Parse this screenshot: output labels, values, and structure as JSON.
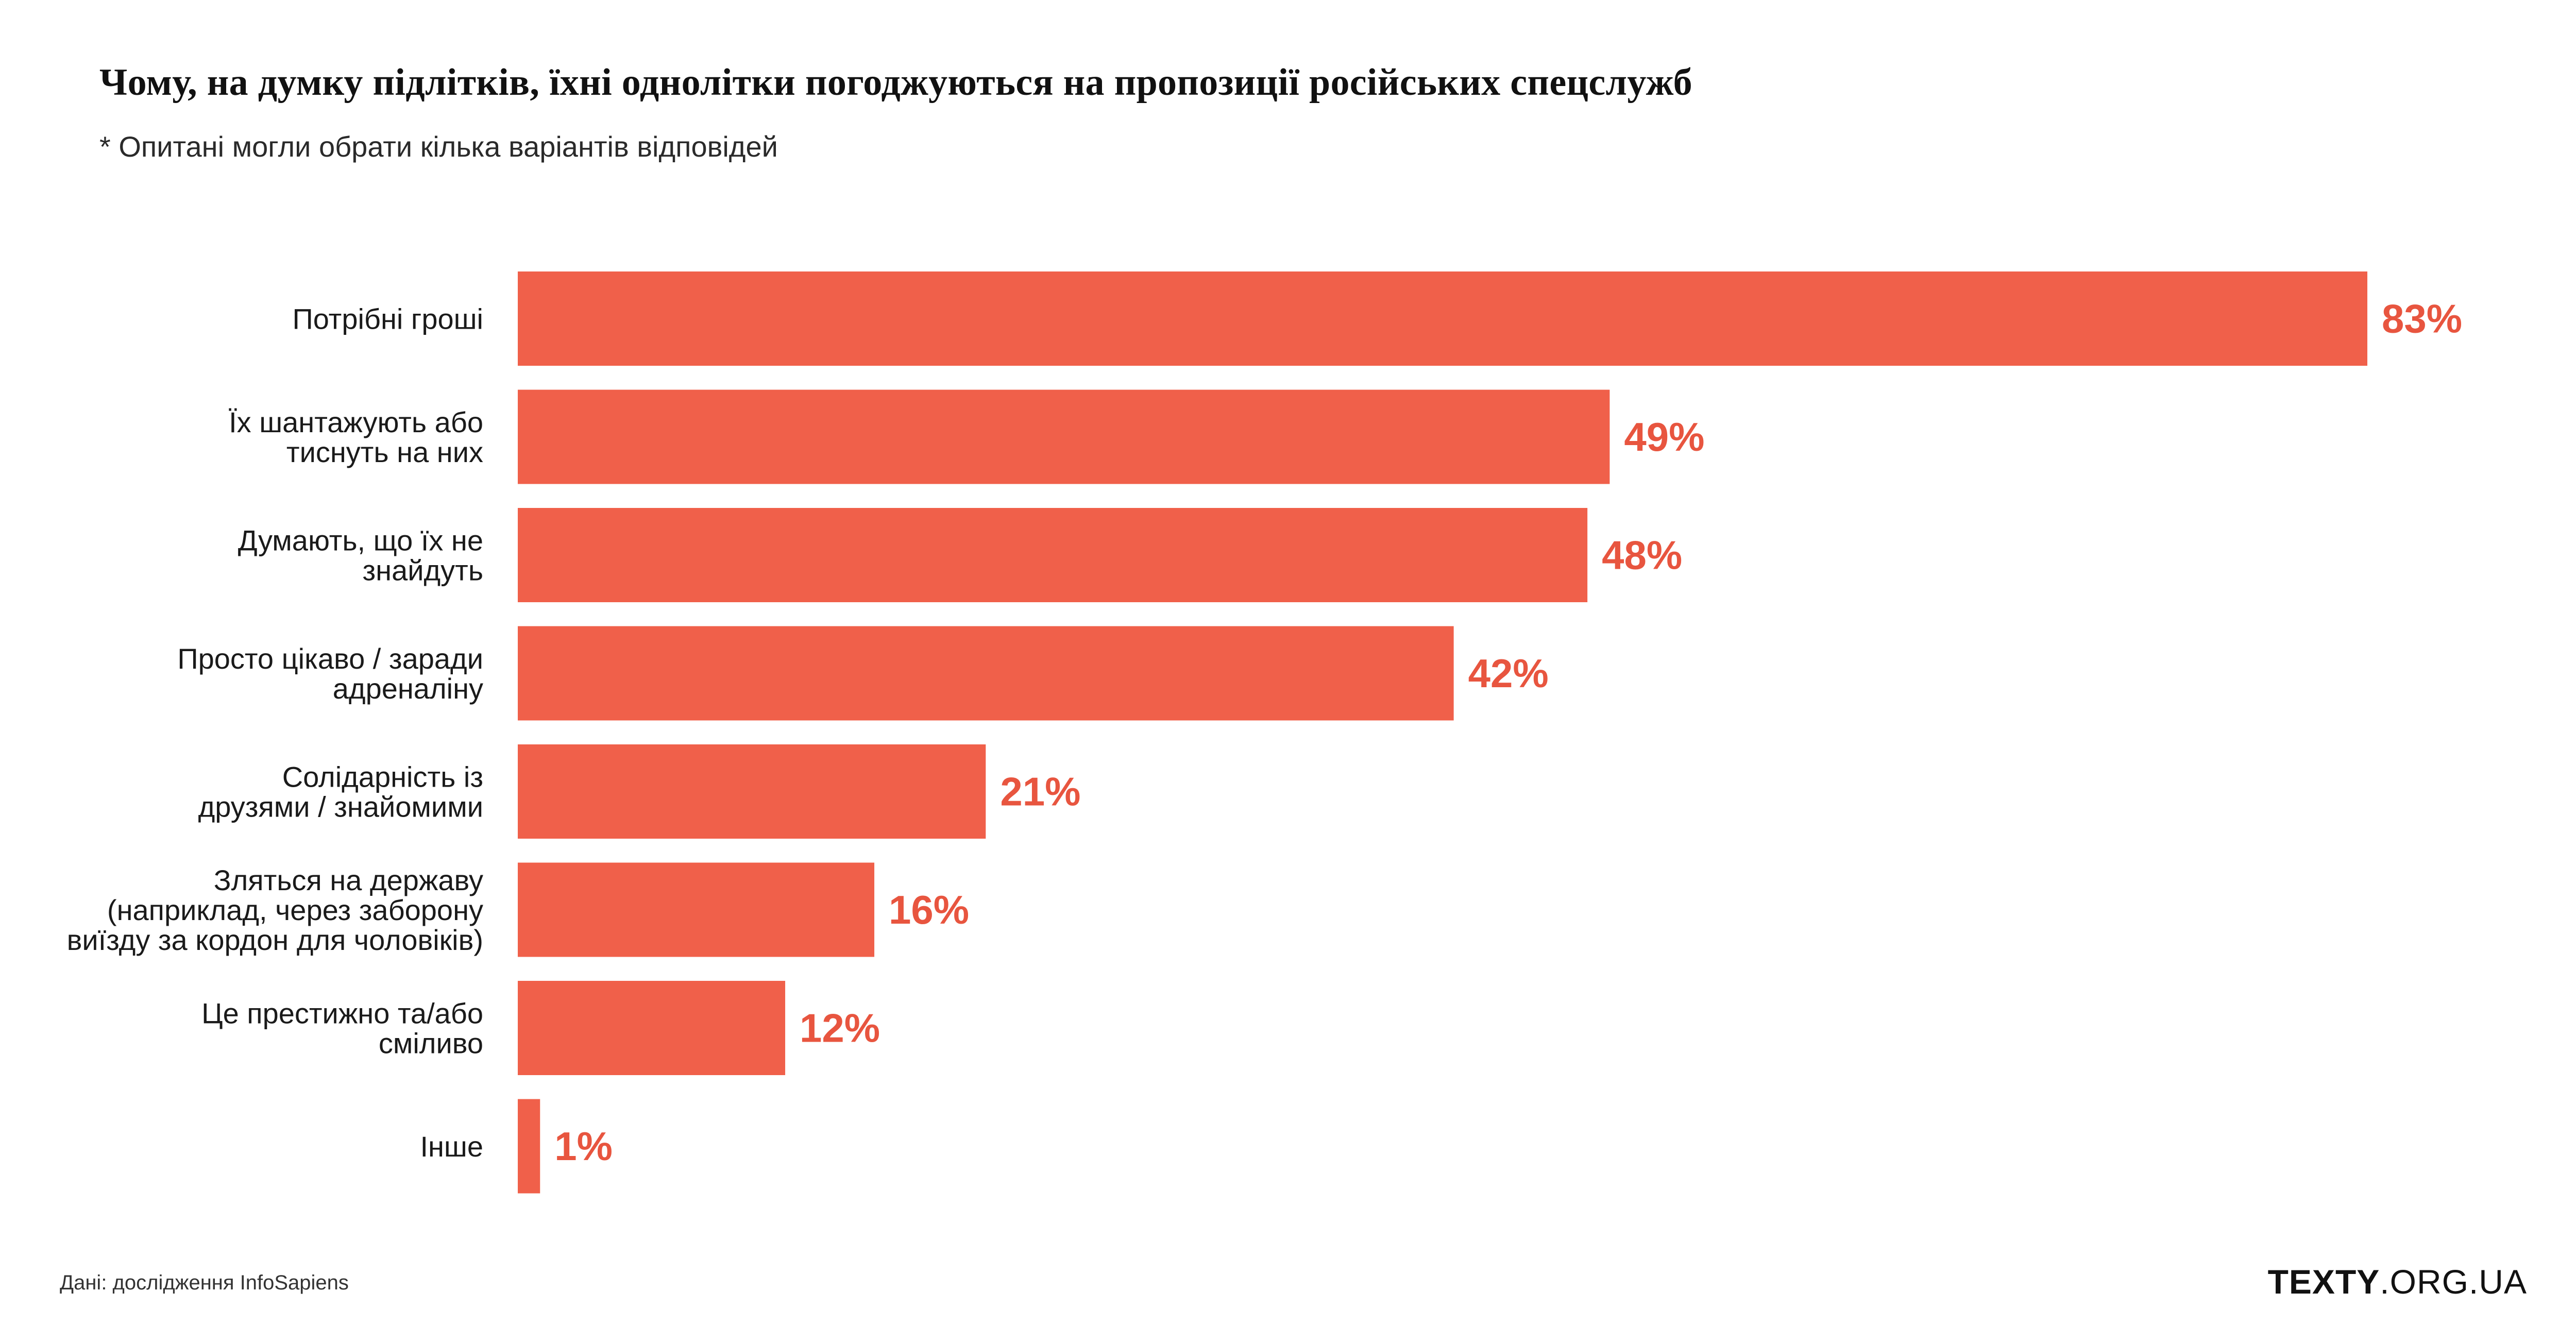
{
  "header": {
    "title": "Чому, на думку підлітків, їхні однолітки погоджуються на пропозиції російських спецслужб",
    "subtitle": "* Опитані могли обрати кілька варіантів відповідей"
  },
  "footer": {
    "source": "Дані: дослідження InfoSapiens",
    "brand_bold": "TEXTY",
    "brand_rest": ".ORG.UA"
  },
  "colors": {
    "bar": "#F0604A",
    "value_text": "#E8553F"
  },
  "chart_data": {
    "type": "bar",
    "orientation": "horizontal",
    "title": "Чому, на думку підлітків, їхні однолітки погоджуються на пропозиції російських спецслужб",
    "subtitle": "* Опитані могли обрати кілька варіантів відповідей",
    "xlabel": "",
    "ylabel": "",
    "unit": "%",
    "xlim": [
      0,
      83
    ],
    "grid": false,
    "legend": "none",
    "categories": [
      [
        "Потрібні гроші"
      ],
      [
        "Їх шантажують або",
        "тиснуть на них"
      ],
      [
        "Думають, що їх не",
        "знайдуть"
      ],
      [
        "Просто цікаво / заради",
        "адреналіну"
      ],
      [
        "Солідарність із",
        "друзями / знайомими"
      ],
      [
        "Зляться на державу",
        "(наприклад, через заборону",
        "виїзду за кордон для чоловіків)"
      ],
      [
        "Це престижно та/або",
        "сміливо"
      ],
      [
        "Інше"
      ]
    ],
    "values": [
      83,
      49,
      48,
      42,
      21,
      16,
      12,
      1
    ],
    "value_labels": [
      "83%",
      "49%",
      "48%",
      "42%",
      "21%",
      "16%",
      "12%",
      "1%"
    ]
  }
}
